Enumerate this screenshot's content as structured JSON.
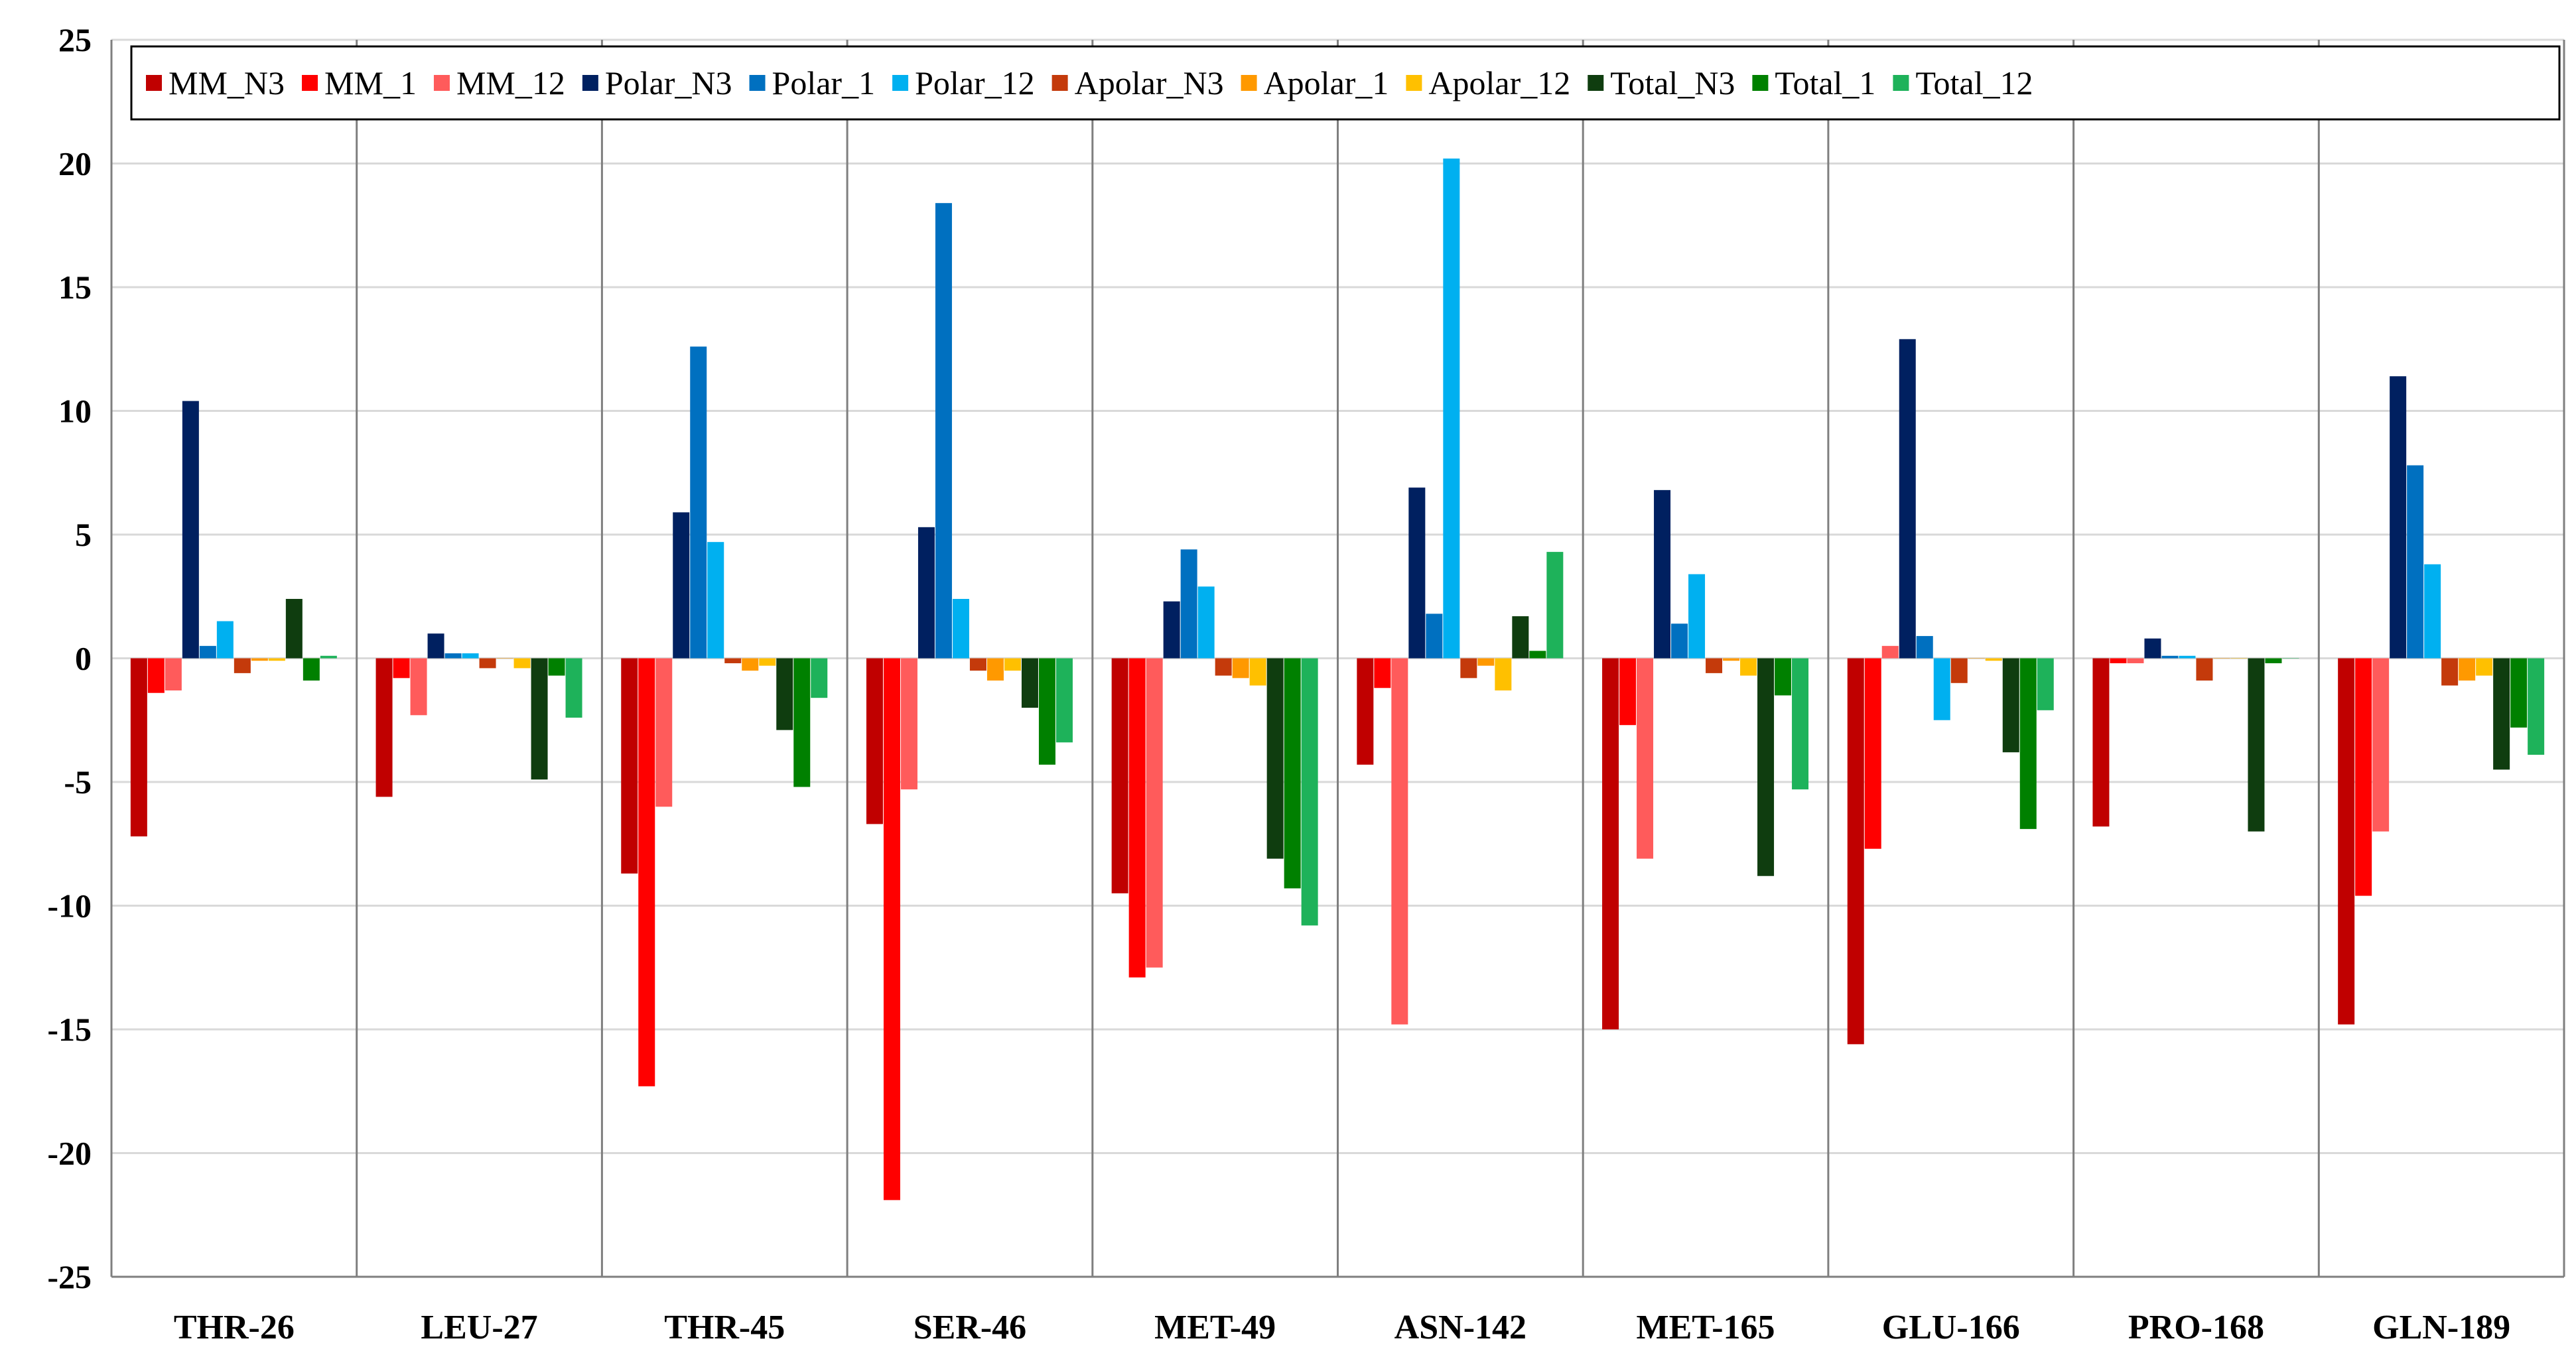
{
  "chart_data": {
    "type": "bar",
    "title": "",
    "xlabel": "",
    "ylabel": "",
    "ylim": [
      -25,
      25
    ],
    "yticks": [
      25,
      20,
      15,
      10,
      5,
      0,
      -5,
      -10,
      -15,
      -20,
      -25
    ],
    "grid": true,
    "legend_position": "top",
    "categories": [
      "THR-26",
      "LEU-27",
      "THR-45",
      "SER-46",
      "MET-49",
      "ASN-142",
      "MET-165",
      "GLU-166",
      "PRO-168",
      "GLN-189"
    ],
    "series": [
      {
        "name": "MM_N3",
        "color": "#C00000",
        "values": [
          -7.2,
          -5.6,
          -8.7,
          -6.7,
          -9.5,
          -4.3,
          -15.0,
          -15.6,
          -6.8,
          -14.8
        ]
      },
      {
        "name": "MM_1",
        "color": "#FF0000",
        "values": [
          -1.4,
          -0.8,
          -17.3,
          -21.9,
          -12.9,
          -1.2,
          -2.7,
          -7.7,
          -0.2,
          -9.6
        ]
      },
      {
        "name": "MM_12",
        "color": "#FF5B5B",
        "values": [
          -1.3,
          -2.3,
          -6.0,
          -5.3,
          -12.5,
          -14.8,
          -8.1,
          0.5,
          -0.2,
          -7.0
        ]
      },
      {
        "name": "Polar_N3",
        "color": "#002060",
        "values": [
          10.4,
          1.0,
          5.9,
          5.3,
          2.3,
          6.9,
          6.8,
          12.9,
          0.8,
          11.4
        ]
      },
      {
        "name": "Polar_1",
        "color": "#0070C0",
        "values": [
          0.5,
          0.2,
          12.6,
          18.4,
          4.4,
          1.8,
          1.4,
          0.9,
          0.1,
          7.8
        ]
      },
      {
        "name": "Polar_12",
        "color": "#00B0F0",
        "values": [
          1.5,
          0.2,
          4.7,
          2.4,
          2.9,
          20.2,
          3.4,
          -2.5,
          0.1,
          3.8
        ]
      },
      {
        "name": "Apolar_N3",
        "color": "#C43A0B",
        "values": [
          -0.6,
          -0.4,
          -0.2,
          -0.5,
          -0.7,
          -0.8,
          -0.6,
          -1.0,
          -0.9,
          -1.1
        ]
      },
      {
        "name": "Apolar_1",
        "color": "#FF9900",
        "values": [
          -0.1,
          0.0,
          -0.5,
          -0.9,
          -0.8,
          -0.3,
          -0.1,
          0.0,
          0.0,
          -0.9
        ]
      },
      {
        "name": "Apolar_12",
        "color": "#FFC000",
        "values": [
          -0.1,
          -0.4,
          -0.3,
          -0.5,
          -1.1,
          -1.3,
          -0.7,
          -0.1,
          0.0,
          -0.7
        ]
      },
      {
        "name": "Total_N3",
        "color": "#0F3D0F",
        "values": [
          2.4,
          -4.9,
          -2.9,
          -2.0,
          -8.1,
          1.7,
          -8.8,
          -3.8,
          -7.0,
          -4.5
        ]
      },
      {
        "name": "Total_1",
        "color": "#008000",
        "values": [
          -0.9,
          -0.7,
          -5.2,
          -4.3,
          -9.3,
          0.3,
          -1.5,
          -6.9,
          -0.2,
          -2.8
        ]
      },
      {
        "name": "Total_12",
        "color": "#1EB25A",
        "values": [
          0.1,
          -2.4,
          -1.6,
          -3.4,
          -10.8,
          4.3,
          -5.3,
          -2.1,
          0.0,
          -3.9
        ]
      }
    ]
  }
}
